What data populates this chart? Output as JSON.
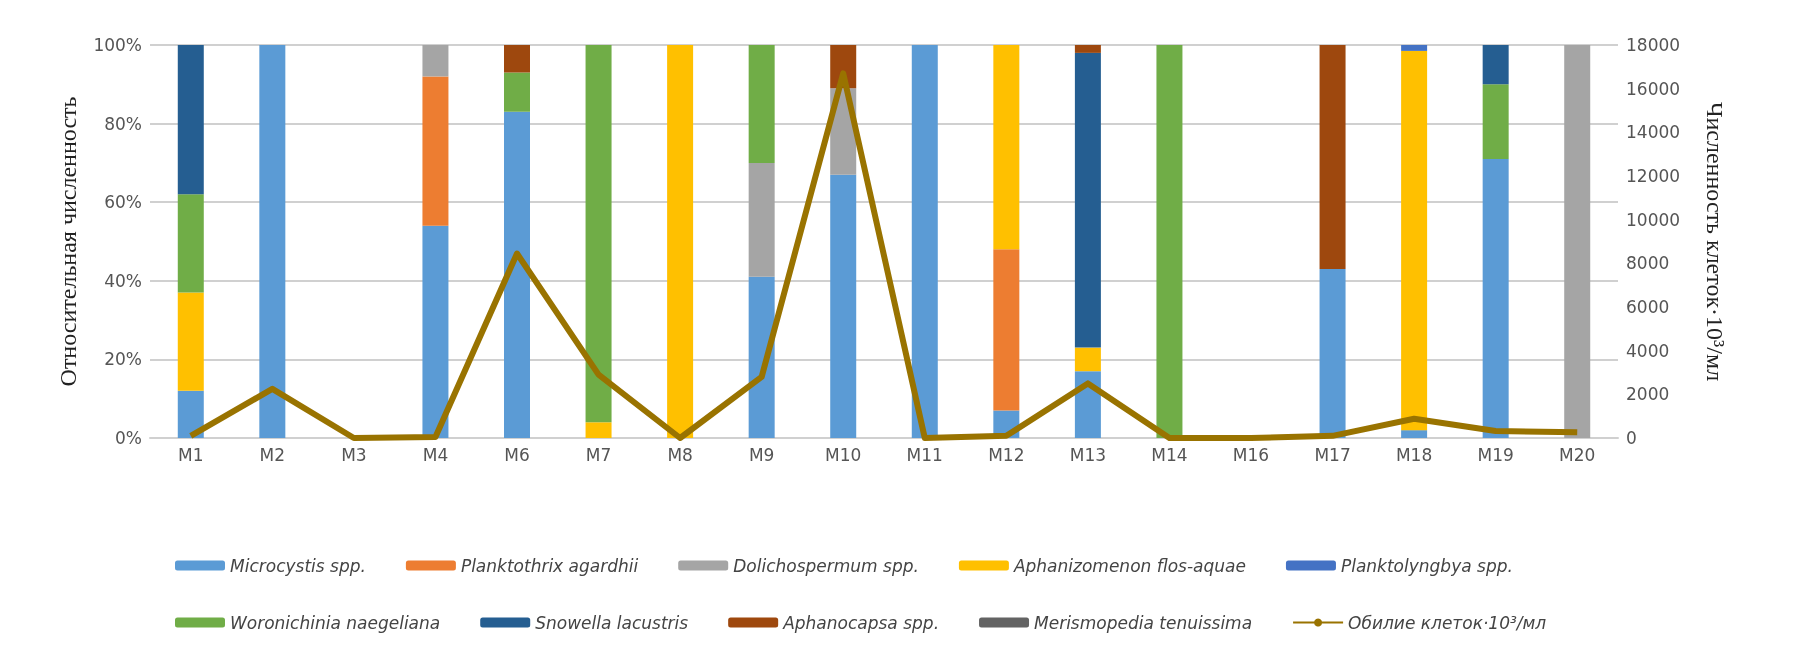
{
  "chart_data": {
    "type": "bar",
    "stacked": true,
    "ylabel": "Относительная численность",
    "y2label": "Численность клеток·10³/мл",
    "categories": [
      "M1",
      "M2",
      "M3",
      "M4",
      "M6",
      "M7",
      "M8",
      "M9",
      "M10",
      "M11",
      "M12",
      "M13",
      "M14",
      "M16",
      "M17",
      "M18",
      "M19",
      "M20"
    ],
    "ylim": [
      0,
      100
    ],
    "yticks": [
      {
        "value": 0,
        "label": "0%"
      },
      {
        "value": 20,
        "label": "20%"
      },
      {
        "value": 40,
        "label": "40%"
      },
      {
        "value": 60,
        "label": "60%"
      },
      {
        "value": 80,
        "label": "80%"
      },
      {
        "value": 100,
        "label": "100%"
      }
    ],
    "y2lim": [
      0,
      18000
    ],
    "y2ticks": [
      0,
      2000,
      4000,
      6000,
      8000,
      10000,
      12000,
      14000,
      16000,
      18000
    ],
    "grid": "y",
    "legend": "bottom",
    "series": [
      {
        "name": "Microcystis spp.",
        "color": "#5b9bd5",
        "values": [
          12,
          100,
          0,
          54,
          83,
          0,
          0,
          41,
          67,
          100,
          7,
          17,
          0,
          0,
          43,
          2,
          71,
          0
        ]
      },
      {
        "name": "Planktothrix agardhii",
        "color": "#ed7d31",
        "values": [
          0,
          0,
          0,
          38,
          0,
          0,
          0,
          0,
          0,
          0,
          41,
          0,
          0,
          0,
          0,
          0,
          0,
          0
        ]
      },
      {
        "name": "Dolichospermum spp.",
        "color": "#a5a5a5",
        "values": [
          0,
          0,
          0,
          8,
          0,
          0,
          0,
          29,
          22,
          0,
          0,
          0,
          0,
          0,
          0,
          0,
          0,
          100
        ]
      },
      {
        "name": "Aphanizomenon flos-aquae",
        "color": "#ffc000",
        "values": [
          25,
          0,
          0,
          0,
          0,
          4,
          100,
          0,
          0,
          0,
          52,
          6,
          0,
          0,
          0,
          96.5,
          0,
          0
        ]
      },
      {
        "name": "Planktolyngbya spp.",
        "color": "#4472c4",
        "values": [
          0,
          0,
          0,
          0,
          0,
          0,
          0,
          0,
          0,
          0,
          0,
          0,
          0,
          0,
          0,
          1.5,
          0,
          0
        ]
      },
      {
        "name": "Woronichinia naegeliana",
        "color": "#70ad47",
        "values": [
          25,
          0,
          0,
          0,
          10,
          96,
          0,
          30,
          0,
          0,
          0,
          0,
          100,
          0,
          0,
          0,
          19,
          0
        ]
      },
      {
        "name": "Snowella lacustris",
        "color": "#255e91",
        "values": [
          38,
          0,
          0,
          0,
          0,
          0,
          0,
          0,
          0,
          0,
          0,
          75,
          0,
          0,
          0,
          0,
          10,
          0
        ]
      },
      {
        "name": "Aphanocapsa spp.",
        "color": "#9e480e",
        "values": [
          0,
          0,
          0,
          0,
          7,
          0,
          0,
          0,
          11,
          0,
          0,
          2,
          0,
          0,
          57,
          0,
          0,
          0
        ]
      },
      {
        "name": "Merismopedia tenuissima",
        "color": "#636363",
        "values": [
          0,
          0,
          0,
          0,
          0,
          0,
          0,
          0,
          0,
          0,
          0,
          0,
          0,
          0,
          0,
          0,
          0,
          0
        ]
      },
      {
        "name": "Обилие клеток·10³/мл",
        "type": "line",
        "axis": "y2",
        "color": "#997300",
        "values": [
          100,
          2250,
          0,
          50,
          8450,
          2900,
          0,
          2800,
          16700,
          0,
          100,
          2500,
          0,
          0,
          100,
          880,
          320,
          260
        ]
      }
    ]
  }
}
